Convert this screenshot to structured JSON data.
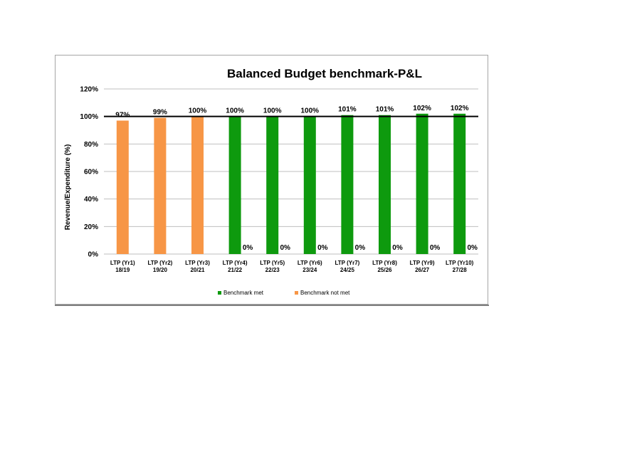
{
  "chart_data": {
    "type": "bar",
    "title": "Balanced Budget benchmark-P&L",
    "xlabel": "",
    "ylabel": "Revenue/Expenditure (%)",
    "ylim": [
      0,
      120
    ],
    "y_ticks": [
      0,
      20,
      40,
      60,
      80,
      100,
      120
    ],
    "y_tick_labels": [
      "0%",
      "20%",
      "40%",
      "60%",
      "80%",
      "100%",
      "120%"
    ],
    "categories": [
      [
        "LTP (Yr1)",
        "18/19"
      ],
      [
        "LTP (Yr2)",
        "19/20"
      ],
      [
        "LTP (Yr3)",
        "20/21"
      ],
      [
        "LTP (Yr4)",
        "21/22"
      ],
      [
        "LTP (Yr5)",
        "22/23"
      ],
      [
        "LTP (Yr6)",
        "23/24"
      ],
      [
        "LTP (Yr7)",
        "24/25"
      ],
      [
        "LTP (Yr8)",
        "25/26"
      ],
      [
        "LTP (Yr9)",
        "26/27"
      ],
      [
        "LTP (Yr10)",
        "27/28"
      ]
    ],
    "series": [
      {
        "name": "Benchmark not met",
        "color": "#f79646",
        "values": [
          97,
          99,
          100,
          null,
          null,
          null,
          null,
          null,
          null,
          null
        ],
        "labels": [
          "97%",
          "99%",
          "100%",
          null,
          null,
          null,
          null,
          null,
          null,
          null
        ]
      },
      {
        "name": "Benchmark met",
        "color": "#0e9a0e",
        "values": [
          null,
          null,
          null,
          100,
          100,
          100,
          101,
          101,
          102,
          102
        ],
        "labels": [
          null,
          null,
          null,
          "100%",
          "100%",
          "100%",
          "101%",
          "101%",
          "102%",
          "102%"
        ]
      },
      {
        "name": "",
        "color": "#0e9a0e",
        "values": [
          null,
          null,
          null,
          0,
          0,
          0,
          0,
          0,
          0,
          0
        ],
        "labels": [
          null,
          null,
          null,
          "0%",
          "0%",
          "0%",
          "0%",
          "0%",
          "0%",
          "0%"
        ]
      }
    ],
    "benchmark_line": 100,
    "grid": true,
    "legend": {
      "position": "bottom",
      "items": [
        {
          "label": "Benchmark met",
          "color": "#0e9a0e"
        },
        {
          "label": "Benchmark not met",
          "color": "#f79646"
        }
      ]
    }
  }
}
